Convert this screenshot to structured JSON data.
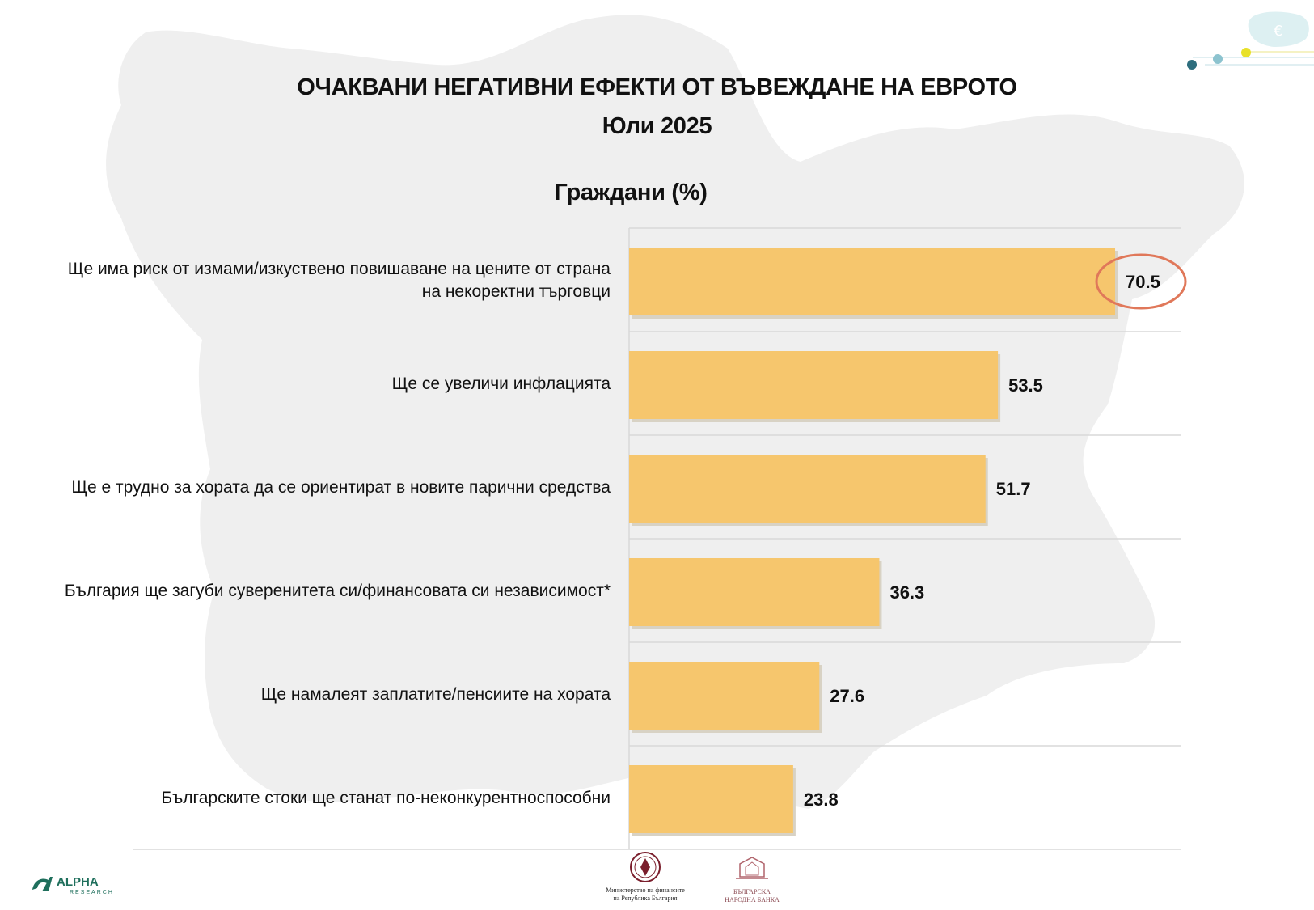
{
  "title": "ОЧАКВАНИ НЕГАТИВНИ ЕФЕКТИ ОТ ВЪВЕЖДАНЕ НА ЕВРОТО",
  "subtitle": "Юли 2025",
  "chart_subtitle": "Граждани (%)",
  "colors": {
    "bar": "#F6C66D",
    "highlight_ring": "#E0785A",
    "grid": "#D9D9D9",
    "map": "#EFEFEF"
  },
  "chart_data": {
    "type": "bar",
    "orientation": "horizontal",
    "categories": [
      "Ще има риск от измами/изкуствено повишаване на цените от страна на некоректни търговци",
      "Ще се увеличи инфлацията",
      "Ще е трудно за хората да се ориентират в новите парични средства",
      "България ще загуби суверенитета си/финансовата си независимост*",
      "Ще намалеят заплатите/пенсиите на хората",
      "Българските стоки ще станат по-неконкурентноспособни"
    ],
    "category_lines": [
      [
        "Ще има риск от измами/изкуствено повишаване на цените от страна",
        "на некоректни търговци"
      ],
      [
        "Ще се увеличи инфлацията"
      ],
      [
        "Ще е трудно за хората да се ориентират в новите парични средства"
      ],
      [
        "България ще загуби суверенитета си/финансовата си независимост*"
      ],
      [
        "Ще намалеят заплатите/пенсиите на хората"
      ],
      [
        "Българските стоки ще станат по-неконкурентноспособни"
      ]
    ],
    "values": [
      70.5,
      53.5,
      51.7,
      36.3,
      27.6,
      23.8
    ],
    "value_labels": [
      "70.5",
      "53.5",
      "51.7",
      "36.3",
      "27.6",
      "23.8"
    ],
    "highlighted_index": 0,
    "xlim": [
      0,
      80
    ],
    "grid": true
  },
  "logos": {
    "alpha": "ALPHA",
    "alpha_sub": "RESEARCH",
    "ministry": [
      "Министерство на финансите",
      "на Република България"
    ],
    "bnb": [
      "БЪЛГАРСКА",
      "НАРОДНА БАНКА"
    ],
    "euro_symbol": "€"
  }
}
